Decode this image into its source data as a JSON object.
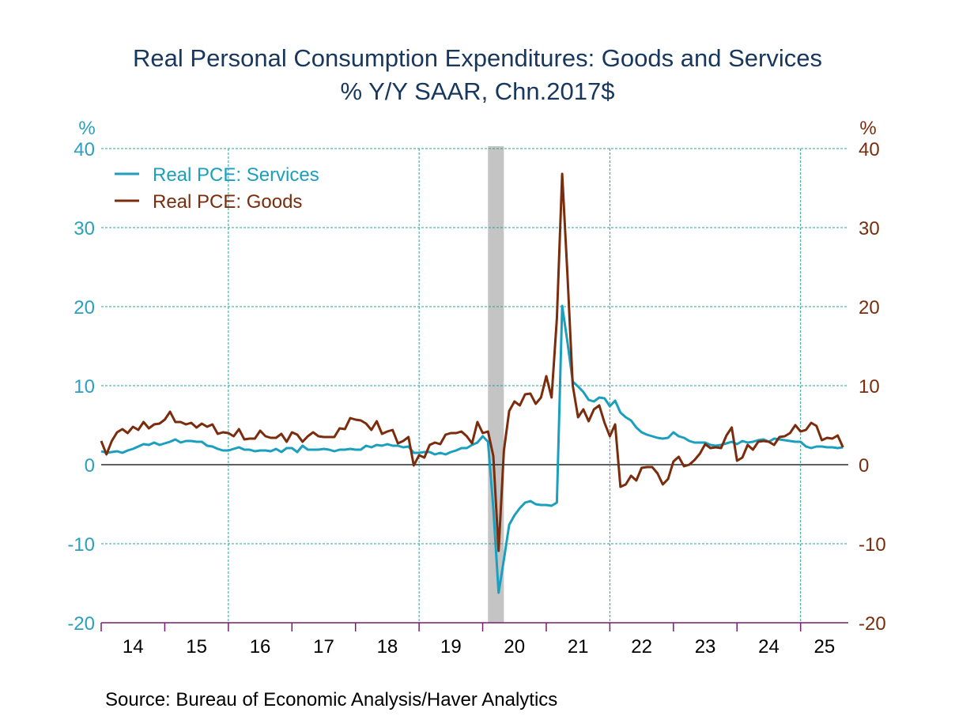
{
  "chart_data": {
    "type": "line",
    "title": "Real Personal Consumption Expenditures: Goods and Services",
    "subtitle": "% Y/Y     SAAR, Chn.2017$",
    "ylabel_left": "%",
    "ylabel_right": "%",
    "ylim": [
      -20,
      40
    ],
    "yticks": [
      -20,
      -10,
      0,
      10,
      20,
      30,
      40
    ],
    "xlim": [
      2014,
      2025.75
    ],
    "xtick_labels": [
      "14",
      "15",
      "16",
      "17",
      "18",
      "19",
      "20",
      "21",
      "22",
      "23",
      "24",
      "25"
    ],
    "grid": true,
    "legend_placement": "top-left",
    "recession_shading": {
      "start": "2020-02",
      "end": "2020-04"
    },
    "frequency": "monthly",
    "start": "2014-01",
    "end": "2025-09",
    "series": [
      {
        "name": "Real PCE: Services",
        "axis": "left",
        "color": "#1a9fbe",
        "values": [
          1.7,
          1.5,
          1.6,
          1.7,
          1.5,
          1.8,
          2.0,
          2.3,
          2.6,
          2.5,
          2.8,
          2.5,
          2.7,
          2.9,
          3.2,
          2.8,
          3.0,
          3.0,
          2.9,
          2.9,
          2.4,
          2.3,
          2.0,
          1.8,
          1.8,
          2.0,
          2.2,
          1.9,
          1.9,
          1.7,
          1.8,
          1.8,
          1.7,
          2.0,
          1.6,
          2.1,
          2.1,
          1.6,
          2.4,
          1.9,
          1.9,
          1.9,
          2.0,
          1.9,
          1.7,
          1.9,
          1.9,
          2.0,
          1.9,
          1.9,
          2.4,
          2.2,
          2.5,
          2.4,
          2.6,
          2.4,
          2.4,
          2.2,
          2.3,
          1.5,
          1.5,
          1.6,
          1.6,
          1.3,
          1.5,
          1.3,
          1.6,
          1.8,
          2.1,
          2.1,
          2.5,
          2.8,
          3.6,
          2.9,
          -5.5,
          -16.2,
          -12.0,
          -7.6,
          -6.4,
          -5.5,
          -4.8,
          -4.6,
          -5.0,
          -5.1,
          -5.1,
          -5.2,
          -4.8,
          20.1,
          15.5,
          10.5,
          9.9,
          9.2,
          8.2,
          8.0,
          8.5,
          8.4,
          7.4,
          8.1,
          6.6,
          6.0,
          5.6,
          4.7,
          4.1,
          3.8,
          3.6,
          3.4,
          3.3,
          3.4,
          4.1,
          3.6,
          3.4,
          3.0,
          2.8,
          2.8,
          2.8,
          2.5,
          2.4,
          2.5,
          2.7,
          2.9,
          2.6,
          3.0,
          2.8,
          2.9,
          3.1,
          3.2,
          2.9,
          3.3,
          3.2,
          3.1,
          3.0,
          2.9,
          2.9,
          2.3,
          2.1,
          2.3,
          2.3,
          2.2,
          2.2,
          2.1,
          2.2
        ]
      },
      {
        "name": "Real PCE: Goods",
        "axis": "right",
        "color": "#7b2c0c",
        "values": [
          3.0,
          1.3,
          3.0,
          4.1,
          4.5,
          4.0,
          4.8,
          4.4,
          5.4,
          4.6,
          5.1,
          5.2,
          5.7,
          6.7,
          5.4,
          5.4,
          5.1,
          5.3,
          4.7,
          5.2,
          4.8,
          5.1,
          3.9,
          4.1,
          4.0,
          3.6,
          4.5,
          3.2,
          3.3,
          3.3,
          4.3,
          3.6,
          3.4,
          3.4,
          3.9,
          2.9,
          4.1,
          3.8,
          2.9,
          3.6,
          4.1,
          3.6,
          3.5,
          3.5,
          3.5,
          4.6,
          4.5,
          5.9,
          5.7,
          5.6,
          5.2,
          4.4,
          5.5,
          3.9,
          4.2,
          4.4,
          2.7,
          3.0,
          3.5,
          -0.1,
          1.2,
          0.9,
          2.5,
          2.8,
          2.6,
          3.8,
          4.0,
          4.0,
          4.2,
          3.6,
          2.7,
          5.4,
          4.0,
          4.2,
          1.1,
          -10.9,
          1.8,
          6.8,
          8.0,
          7.5,
          8.9,
          9.0,
          7.7,
          8.5,
          11.2,
          8.5,
          18.5,
          36.8,
          24.0,
          10.0,
          6.0,
          7.0,
          5.5,
          7.0,
          7.5,
          5.3,
          3.6,
          5.1,
          -2.8,
          -2.5,
          -1.4,
          -2.0,
          -0.4,
          -0.3,
          -0.3,
          -1.1,
          -2.5,
          -1.8,
          0.4,
          1.0,
          -0.2,
          0.0,
          0.6,
          1.4,
          2.6,
          2.1,
          2.2,
          2.1,
          3.7,
          4.7,
          0.5,
          0.9,
          2.5,
          1.9,
          2.9,
          3.0,
          2.9,
          2.5,
          3.5,
          3.6,
          4.0,
          5.0,
          4.2,
          4.4,
          5.3,
          4.9,
          3.1,
          3.4,
          3.3,
          3.7,
          2.2
        ]
      }
    ],
    "colors": {
      "left_axis": "#2a9fbf",
      "right_axis": "#7b2c0c",
      "grid": "#2aa394",
      "x_axis": "#7a1a6e",
      "recession": "#c4c4c4",
      "title": "#17375e"
    }
  },
  "source": "Source:  Bureau of Economic Analysis/Haver Analytics"
}
